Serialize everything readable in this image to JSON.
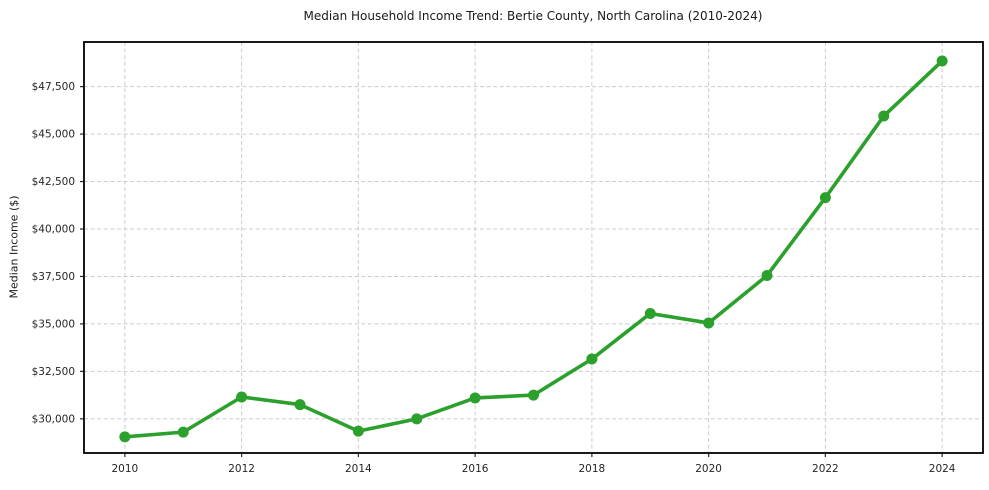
{
  "chart_data": {
    "type": "line",
    "title": "Median Household Income Trend: Bertie County, North Carolina (2010-2024)",
    "xlabel": "",
    "ylabel": "Median Income ($)",
    "x": [
      2010,
      2011,
      2012,
      2013,
      2014,
      2015,
      2016,
      2017,
      2018,
      2019,
      2020,
      2021,
      2022,
      2023,
      2024
    ],
    "values": [
      29050,
      29300,
      31150,
      30750,
      29350,
      30000,
      31100,
      31250,
      33150,
      35550,
      35050,
      37550,
      41650,
      45950,
      48850
    ],
    "xticks": [
      2010,
      2012,
      2014,
      2016,
      2018,
      2020,
      2022,
      2024
    ],
    "xtick_labels": [
      "2010",
      "2012",
      "2014",
      "2016",
      "2018",
      "2020",
      "2022",
      "2024"
    ],
    "yticks": [
      30000,
      32500,
      35000,
      37500,
      40000,
      42500,
      45000,
      47500
    ],
    "ytick_labels": [
      "$30,000",
      "$32,500",
      "$35,000",
      "$37,500",
      "$40,000",
      "$42,500",
      "$45,000",
      "$47,500"
    ],
    "xlim": [
      2009.3,
      2024.7
    ],
    "ylim": [
      28200,
      49850
    ],
    "grid": true,
    "grid_style": "dashed",
    "legend": false,
    "line_color": "#2ca02c",
    "marker": "circle",
    "marker_radius": 5.5,
    "line_width": 3.6,
    "grid_color": "#cccccc",
    "spine_color": "#000000",
    "background": "#ffffff"
  }
}
